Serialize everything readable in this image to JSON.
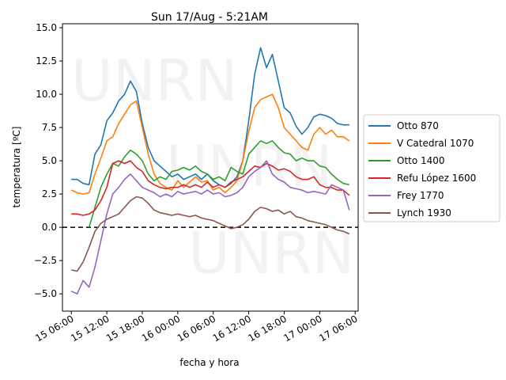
{
  "chart_data": {
    "type": "line",
    "title": "Sun 17/Aug - 5:21AM",
    "xlabel": "fecha y hora",
    "ylabel": "temperatura [ºC]",
    "xlim": [
      -1.5,
      48.5
    ],
    "ylim": [
      -6.3,
      15.3
    ],
    "x_unit": "hours since 15 Aug 06:00",
    "xticks": [
      {
        "value": 0,
        "label": "15 06:00"
      },
      {
        "value": 6,
        "label": "15 12:00"
      },
      {
        "value": 12,
        "label": "15 18:00"
      },
      {
        "value": 18,
        "label": "16 00:00"
      },
      {
        "value": 24,
        "label": "16 06:00"
      },
      {
        "value": 30,
        "label": "16 12:00"
      },
      {
        "value": 36,
        "label": "16 18:00"
      },
      {
        "value": 42,
        "label": "17 00:00"
      },
      {
        "value": 48,
        "label": "17 06:00"
      }
    ],
    "yticks": [
      -5.0,
      -2.5,
      0.0,
      2.5,
      5.0,
      7.5,
      10.0,
      12.5,
      15.0
    ],
    "yticks_labels": [
      "−5.0",
      "−2.5",
      "0.0",
      "2.5",
      "5.0",
      "7.5",
      "10.0",
      "12.5",
      "15.0"
    ],
    "reference_line": {
      "y": 0,
      "style": "dashed",
      "color": "#000000"
    },
    "watermark": "UNRN",
    "legend_position": "right-outside",
    "series": [
      {
        "name": "Otto 870",
        "color": "#1f77b4",
        "points": [
          [
            0,
            3.6
          ],
          [
            1,
            3.6
          ],
          [
            2,
            3.3
          ],
          [
            3,
            3.2
          ],
          [
            4,
            5.5
          ],
          [
            5,
            6.2
          ],
          [
            6,
            8.0
          ],
          [
            7,
            8.6
          ],
          [
            8,
            9.5
          ],
          [
            9,
            10.0
          ],
          [
            10,
            11.0
          ],
          [
            11,
            10.2
          ],
          [
            12,
            7.8
          ],
          [
            13,
            6.0
          ],
          [
            14,
            5.0
          ],
          [
            15,
            4.6
          ],
          [
            16,
            4.2
          ],
          [
            17,
            3.8
          ],
          [
            18,
            4.0
          ],
          [
            19,
            3.6
          ],
          [
            20,
            3.8
          ],
          [
            21,
            4.0
          ],
          [
            22,
            3.6
          ],
          [
            23,
            4.0
          ],
          [
            24,
            3.5
          ],
          [
            25,
            3.2
          ],
          [
            26,
            3.0
          ],
          [
            27,
            3.3
          ],
          [
            28,
            3.8
          ],
          [
            29,
            5.0
          ],
          [
            30,
            8.0
          ],
          [
            31,
            11.5
          ],
          [
            32,
            13.5
          ],
          [
            33,
            12.0
          ],
          [
            34,
            13.0
          ],
          [
            35,
            11.0
          ],
          [
            36,
            9.0
          ],
          [
            37,
            8.6
          ],
          [
            38,
            7.6
          ],
          [
            39,
            7.0
          ],
          [
            40,
            7.5
          ],
          [
            41,
            8.3
          ],
          [
            42,
            8.5
          ],
          [
            43,
            8.4
          ],
          [
            44,
            8.2
          ],
          [
            45,
            7.8
          ],
          [
            46,
            7.7
          ],
          [
            47,
            7.7
          ]
        ]
      },
      {
        "name": "V Catedral 1070",
        "color": "#ff7f0e",
        "points": [
          [
            0,
            2.8
          ],
          [
            1,
            2.6
          ],
          [
            2,
            2.5
          ],
          [
            3,
            2.6
          ],
          [
            4,
            4.0
          ],
          [
            5,
            5.2
          ],
          [
            6,
            6.5
          ],
          [
            7,
            6.8
          ],
          [
            8,
            7.8
          ],
          [
            9,
            8.5
          ],
          [
            10,
            9.2
          ],
          [
            11,
            9.5
          ],
          [
            12,
            7.5
          ],
          [
            13,
            5.5
          ],
          [
            14,
            4.0
          ],
          [
            15,
            3.3
          ],
          [
            16,
            3.0
          ],
          [
            17,
            2.8
          ],
          [
            18,
            3.5
          ],
          [
            19,
            3.0
          ],
          [
            20,
            3.4
          ],
          [
            21,
            3.8
          ],
          [
            22,
            3.4
          ],
          [
            23,
            3.5
          ],
          [
            24,
            2.8
          ],
          [
            25,
            3.0
          ],
          [
            26,
            2.6
          ],
          [
            27,
            3.0
          ],
          [
            28,
            3.5
          ],
          [
            29,
            5.0
          ],
          [
            30,
            7.2
          ],
          [
            31,
            9.0
          ],
          [
            32,
            9.6
          ],
          [
            33,
            9.8
          ],
          [
            34,
            10.0
          ],
          [
            35,
            9.0
          ],
          [
            36,
            7.5
          ],
          [
            37,
            7.0
          ],
          [
            38,
            6.5
          ],
          [
            39,
            6.0
          ],
          [
            40,
            5.8
          ],
          [
            41,
            7.0
          ],
          [
            42,
            7.5
          ],
          [
            43,
            7.0
          ],
          [
            44,
            7.3
          ],
          [
            45,
            6.8
          ],
          [
            46,
            6.8
          ],
          [
            47,
            6.5
          ]
        ]
      },
      {
        "name": "Otto 1400",
        "color": "#2ca02c",
        "points": [
          [
            3,
            0.0
          ],
          [
            4,
            1.5
          ],
          [
            5,
            3.0
          ],
          [
            6,
            4.0
          ],
          [
            7,
            4.8
          ],
          [
            8,
            4.6
          ],
          [
            9,
            5.3
          ],
          [
            10,
            5.8
          ],
          [
            11,
            5.5
          ],
          [
            12,
            5.0
          ],
          [
            13,
            4.0
          ],
          [
            14,
            3.5
          ],
          [
            15,
            3.8
          ],
          [
            16,
            3.6
          ],
          [
            17,
            4.2
          ],
          [
            18,
            4.3
          ],
          [
            19,
            4.5
          ],
          [
            20,
            4.3
          ],
          [
            21,
            4.6
          ],
          [
            22,
            4.2
          ],
          [
            23,
            4.0
          ],
          [
            24,
            3.6
          ],
          [
            25,
            3.8
          ],
          [
            26,
            3.5
          ],
          [
            27,
            4.5
          ],
          [
            28,
            4.2
          ],
          [
            29,
            4.0
          ],
          [
            30,
            5.5
          ],
          [
            31,
            6.0
          ],
          [
            32,
            6.5
          ],
          [
            33,
            6.3
          ],
          [
            34,
            6.5
          ],
          [
            35,
            6.0
          ],
          [
            36,
            5.6
          ],
          [
            37,
            5.5
          ],
          [
            38,
            5.0
          ],
          [
            39,
            5.2
          ],
          [
            40,
            5.0
          ],
          [
            41,
            5.0
          ],
          [
            42,
            4.6
          ],
          [
            43,
            4.5
          ],
          [
            44,
            4.0
          ],
          [
            45,
            3.6
          ],
          [
            46,
            3.3
          ],
          [
            47,
            3.2
          ]
        ]
      },
      {
        "name": "Refu López 1600",
        "color": "#d62728",
        "points": [
          [
            0,
            1.0
          ],
          [
            1,
            1.0
          ],
          [
            2,
            0.9
          ],
          [
            3,
            1.0
          ],
          [
            4,
            1.3
          ],
          [
            5,
            2.0
          ],
          [
            6,
            3.0
          ],
          [
            7,
            4.8
          ],
          [
            8,
            5.0
          ],
          [
            9,
            4.8
          ],
          [
            10,
            5.0
          ],
          [
            11,
            4.5
          ],
          [
            12,
            4.2
          ],
          [
            13,
            3.5
          ],
          [
            14,
            3.2
          ],
          [
            15,
            3.0
          ],
          [
            16,
            2.9
          ],
          [
            17,
            3.0
          ],
          [
            18,
            3.0
          ],
          [
            19,
            3.2
          ],
          [
            20,
            3.0
          ],
          [
            21,
            3.2
          ],
          [
            22,
            3.0
          ],
          [
            23,
            3.4
          ],
          [
            24,
            3.0
          ],
          [
            25,
            3.2
          ],
          [
            26,
            3.0
          ],
          [
            27,
            3.4
          ],
          [
            28,
            3.6
          ],
          [
            29,
            3.8
          ],
          [
            30,
            4.2
          ],
          [
            31,
            4.6
          ],
          [
            32,
            4.5
          ],
          [
            33,
            4.8
          ],
          [
            34,
            4.6
          ],
          [
            35,
            4.3
          ],
          [
            36,
            4.4
          ],
          [
            37,
            4.2
          ],
          [
            38,
            3.8
          ],
          [
            39,
            3.6
          ],
          [
            40,
            3.6
          ],
          [
            41,
            3.8
          ],
          [
            42,
            3.2
          ],
          [
            43,
            3.0
          ],
          [
            44,
            3.0
          ],
          [
            45,
            2.8
          ],
          [
            46,
            2.8
          ],
          [
            47,
            2.4
          ]
        ]
      },
      {
        "name": "Frey 1770",
        "color": "#9467bd",
        "points": [
          [
            0,
            -4.8
          ],
          [
            1,
            -5.0
          ],
          [
            2,
            -4.0
          ],
          [
            3,
            -4.5
          ],
          [
            4,
            -3.0
          ],
          [
            5,
            -1.0
          ],
          [
            6,
            1.0
          ],
          [
            7,
            2.5
          ],
          [
            8,
            3.0
          ],
          [
            9,
            3.6
          ],
          [
            10,
            4.0
          ],
          [
            11,
            3.5
          ],
          [
            12,
            3.0
          ],
          [
            13,
            2.8
          ],
          [
            14,
            2.6
          ],
          [
            15,
            2.3
          ],
          [
            16,
            2.5
          ],
          [
            17,
            2.3
          ],
          [
            18,
            2.7
          ],
          [
            19,
            2.5
          ],
          [
            20,
            2.6
          ],
          [
            21,
            2.7
          ],
          [
            22,
            2.5
          ],
          [
            23,
            2.8
          ],
          [
            24,
            2.5
          ],
          [
            25,
            2.6
          ],
          [
            26,
            2.3
          ],
          [
            27,
            2.4
          ],
          [
            28,
            2.6
          ],
          [
            29,
            3.0
          ],
          [
            30,
            3.8
          ],
          [
            31,
            4.2
          ],
          [
            32,
            4.5
          ],
          [
            33,
            5.0
          ],
          [
            34,
            4.0
          ],
          [
            35,
            3.6
          ],
          [
            36,
            3.4
          ],
          [
            37,
            3.0
          ],
          [
            38,
            2.9
          ],
          [
            39,
            2.8
          ],
          [
            40,
            2.6
          ],
          [
            41,
            2.7
          ],
          [
            42,
            2.6
          ],
          [
            43,
            2.5
          ],
          [
            44,
            3.2
          ],
          [
            45,
            3.0
          ],
          [
            46,
            2.8
          ],
          [
            47,
            1.3
          ]
        ]
      },
      {
        "name": "Lynch 1930",
        "color": "#8c564b",
        "points": [
          [
            0,
            -3.2
          ],
          [
            1,
            -3.3
          ],
          [
            2,
            -2.6
          ],
          [
            3,
            -1.5
          ],
          [
            4,
            -0.3
          ],
          [
            5,
            0.3
          ],
          [
            6,
            0.6
          ],
          [
            7,
            0.8
          ],
          [
            8,
            1.0
          ],
          [
            9,
            1.5
          ],
          [
            10,
            2.0
          ],
          [
            11,
            2.3
          ],
          [
            12,
            2.2
          ],
          [
            13,
            1.8
          ],
          [
            14,
            1.3
          ],
          [
            15,
            1.1
          ],
          [
            16,
            1.0
          ],
          [
            17,
            0.9
          ],
          [
            18,
            1.0
          ],
          [
            19,
            0.9
          ],
          [
            20,
            0.8
          ],
          [
            21,
            0.9
          ],
          [
            22,
            0.7
          ],
          [
            23,
            0.6
          ],
          [
            24,
            0.5
          ],
          [
            25,
            0.3
          ],
          [
            26,
            0.1
          ],
          [
            27,
            -0.1
          ],
          [
            28,
            0.0
          ],
          [
            29,
            0.2
          ],
          [
            30,
            0.6
          ],
          [
            31,
            1.2
          ],
          [
            32,
            1.5
          ],
          [
            33,
            1.4
          ],
          [
            34,
            1.2
          ],
          [
            35,
            1.3
          ],
          [
            36,
            1.0
          ],
          [
            37,
            1.2
          ],
          [
            38,
            0.8
          ],
          [
            39,
            0.7
          ],
          [
            40,
            0.5
          ],
          [
            41,
            0.4
          ],
          [
            42,
            0.3
          ],
          [
            43,
            0.2
          ],
          [
            44,
            0.0
          ],
          [
            45,
            -0.2
          ],
          [
            46,
            -0.3
          ],
          [
            47,
            -0.5
          ]
        ]
      }
    ]
  }
}
